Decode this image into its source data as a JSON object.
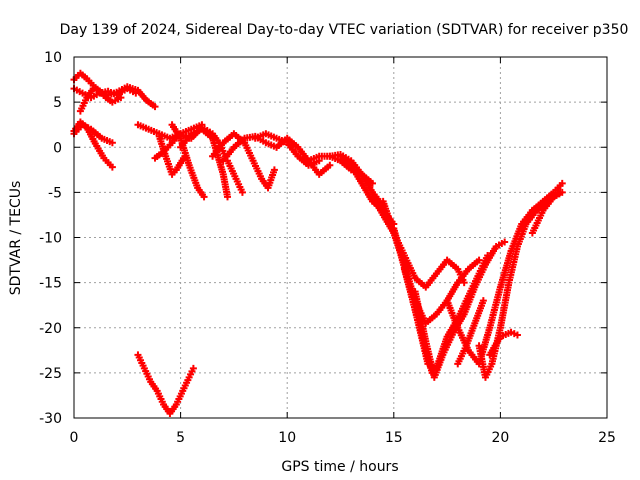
{
  "chart_data": {
    "type": "scatter",
    "title": "Day 139 of 2024, Sidereal Day-to-day VTEC variation (SDTVAR) for receiver p350",
    "xlabel": "GPS time / hours",
    "ylabel": "SDTVAR / TECUs",
    "xlim": [
      0,
      25
    ],
    "ylim": [
      -30,
      10
    ],
    "xticks": [
      0,
      5,
      10,
      15,
      20,
      25
    ],
    "yticks": [
      -30,
      -25,
      -20,
      -15,
      -10,
      -5,
      0,
      5,
      10
    ],
    "grid": true,
    "legend": "none",
    "marker_color": "#ff0000",
    "series": [
      {
        "x": [
          0.0,
          0.3,
          0.6,
          1.0,
          1.5,
          2.0,
          2.5,
          3.0,
          3.4,
          3.8
        ],
        "y": [
          7.5,
          8.2,
          7.6,
          6.6,
          5.7,
          6.1,
          6.7,
          6.3,
          5.2,
          4.5
        ]
      },
      {
        "x": [
          0.0,
          0.4,
          0.8,
          1.2,
          1.6,
          2.0,
          2.5,
          2.9
        ],
        "y": [
          6.5,
          6.0,
          5.5,
          6.0,
          6.2,
          5.8,
          6.5,
          6.0
        ]
      },
      {
        "x": [
          0.0,
          0.3,
          0.6,
          1.0,
          1.4,
          1.8
        ],
        "y": [
          1.8,
          2.8,
          2.2,
          0.4,
          -1.2,
          -2.2
        ]
      },
      {
        "x": [
          0.0,
          0.4,
          0.8,
          1.3,
          1.8
        ],
        "y": [
          1.5,
          2.5,
          2.0,
          1.0,
          0.5
        ]
      },
      {
        "x": [
          0.3,
          0.6,
          0.9,
          1.2,
          1.5,
          1.8,
          2.2
        ],
        "y": [
          4.0,
          5.5,
          6.5,
          6.2,
          5.5,
          5.0,
          5.5
        ]
      },
      {
        "x": [
          3.0,
          3.5,
          4.0,
          4.5,
          5.0,
          5.5,
          6.0
        ],
        "y": [
          2.5,
          2.0,
          1.5,
          1.0,
          1.5,
          2.0,
          2.5
        ]
      },
      {
        "x": [
          3.8,
          4.2,
          4.6,
          5.0,
          5.4
        ],
        "y": [
          -1.2,
          -0.5,
          0.5,
          1.5,
          1.0
        ]
      },
      {
        "x": [
          4.0,
          4.3,
          4.6,
          4.8,
          5.2
        ],
        "y": [
          1.2,
          -1.0,
          -3.0,
          -2.5,
          -1.0
        ]
      },
      {
        "x": [
          4.6,
          5.0,
          5.4,
          5.8,
          6.1
        ],
        "y": [
          2.5,
          1.0,
          -2.0,
          -4.5,
          -5.5
        ]
      },
      {
        "x": [
          5.0,
          5.5,
          6.0,
          6.5,
          7.0,
          7.2
        ],
        "y": [
          0.0,
          1.5,
          2.0,
          1.0,
          -3.0,
          -5.5
        ]
      },
      {
        "x": [
          5.5,
          6.0,
          6.5,
          6.8,
          7.1
        ],
        "y": [
          1.0,
          2.2,
          1.5,
          0.5,
          -1.0
        ]
      },
      {
        "x": [
          6.5,
          7.0,
          7.5,
          8.0
        ],
        "y": [
          -1.0,
          0.5,
          1.5,
          0.5
        ]
      },
      {
        "x": [
          7.0,
          7.5,
          8.0,
          8.5,
          9.0,
          9.5
        ],
        "y": [
          -1.5,
          0.0,
          1.0,
          1.2,
          0.5,
          0.0
        ]
      },
      {
        "x": [
          7.2,
          7.6,
          7.9
        ],
        "y": [
          -1.5,
          -3.5,
          -5.0
        ]
      },
      {
        "x": [
          8.0,
          8.4,
          8.8,
          9.1,
          9.4
        ],
        "y": [
          0.5,
          -1.5,
          -3.5,
          -4.5,
          -2.5
        ]
      },
      {
        "x": [
          8.5,
          9.0,
          9.5,
          10.0,
          10.5,
          11.0,
          11.5
        ],
        "y": [
          1.0,
          1.5,
          1.0,
          0.5,
          -1.0,
          -2.0,
          -1.5
        ]
      },
      {
        "x": [
          9.5,
          10.0,
          10.5,
          11.0,
          11.5,
          12.0
        ],
        "y": [
          0.0,
          1.0,
          0.0,
          -1.5,
          -3.0,
          -2.0
        ]
      },
      {
        "x": [
          11.0,
          11.5,
          12.0,
          12.5,
          13.0,
          13.5,
          14.0
        ],
        "y": [
          -1.5,
          -1.0,
          -1.0,
          -1.5,
          -2.5,
          -3.0,
          -4.0
        ]
      },
      {
        "x": [
          12.0,
          12.5,
          13.0,
          13.5,
          14.0,
          14.5
        ],
        "y": [
          -1.0,
          -0.8,
          -1.5,
          -3.0,
          -5.0,
          -6.5
        ]
      },
      {
        "x": [
          12.5,
          13.0,
          13.5,
          14.0,
          14.5,
          15.0
        ],
        "y": [
          -1.0,
          -2.0,
          -4.0,
          -6.0,
          -7.0,
          -8.5
        ]
      },
      {
        "x": [
          14.0,
          14.5,
          15.0,
          15.5,
          16.0,
          16.5,
          17.0,
          17.5,
          18.0,
          18.3
        ],
        "y": [
          -5.5,
          -7.5,
          -9.5,
          -12.0,
          -14.5,
          -15.5,
          -14.0,
          -12.5,
          -13.5,
          -15.0
        ]
      },
      {
        "x": [
          14.5,
          15.0,
          15.5,
          16.0,
          16.5,
          17.0,
          17.5,
          18.0,
          18.5,
          19.0
        ],
        "y": [
          -6.0,
          -9.5,
          -13.0,
          -17.0,
          -19.5,
          -18.5,
          -17.0,
          -15.0,
          -13.5,
          -12.5
        ]
      },
      {
        "x": [
          15.0,
          15.4,
          15.8,
          16.2,
          16.6,
          17.0,
          17.5,
          18.0,
          18.5,
          19.0,
          19.4
        ],
        "y": [
          -9.0,
          -12.5,
          -16.0,
          -20.0,
          -24.0,
          -24.5,
          -21.0,
          -19.0,
          -16.5,
          -14.0,
          -12.0
        ]
      },
      {
        "x": [
          15.5,
          16.0,
          16.5,
          16.8
        ],
        "y": [
          -13.5,
          -18.0,
          -22.5,
          -25.0
        ]
      },
      {
        "x": [
          16.0,
          16.5,
          16.9,
          17.3,
          17.8,
          18.3,
          18.8,
          19.3,
          19.8,
          20.2
        ],
        "y": [
          -16.0,
          -21.5,
          -25.5,
          -23.0,
          -20.5,
          -18.5,
          -15.5,
          -13.0,
          -11.0,
          -10.5
        ]
      },
      {
        "x": [
          17.5,
          18.0,
          18.5,
          19.0,
          19.5,
          20.0,
          20.5,
          21.0,
          21.5,
          22.0
        ],
        "y": [
          -17.0,
          -20.0,
          -22.5,
          -24.0,
          -20.0,
          -15.5,
          -11.5,
          -8.5,
          -7.0,
          -6.5
        ]
      },
      {
        "x": [
          18.0,
          18.4,
          18.8,
          19.2
        ],
        "y": [
          -24.0,
          -22.0,
          -19.5,
          -17.0
        ]
      },
      {
        "x": [
          19.0,
          19.3,
          19.6,
          20.0,
          20.4,
          20.8,
          21.2,
          21.7,
          22.2,
          22.8
        ],
        "y": [
          -22.0,
          -25.5,
          -24.0,
          -20.0,
          -15.0,
          -11.0,
          -8.5,
          -7.0,
          -6.0,
          -5.0
        ]
      },
      {
        "x": [
          19.5,
          20.0,
          20.5,
          20.8
        ],
        "y": [
          -23.0,
          -21.0,
          -20.5,
          -20.8
        ]
      },
      {
        "x": [
          21.0,
          21.5,
          22.0,
          22.5,
          22.9
        ],
        "y": [
          -9.0,
          -7.0,
          -6.0,
          -5.0,
          -4.0
        ]
      },
      {
        "x": [
          21.5,
          22.0,
          22.5,
          22.9
        ],
        "y": [
          -9.5,
          -7.0,
          -5.5,
          -5.0
        ]
      },
      {
        "x": [
          3.0,
          3.3,
          3.6,
          3.9,
          4.2,
          4.5,
          4.8,
          5.1,
          5.4,
          5.6
        ],
        "y": [
          -23.0,
          -24.5,
          -26.0,
          -27.0,
          -28.5,
          -29.5,
          -28.5,
          -27.0,
          -25.5,
          -24.5
        ]
      }
    ]
  }
}
